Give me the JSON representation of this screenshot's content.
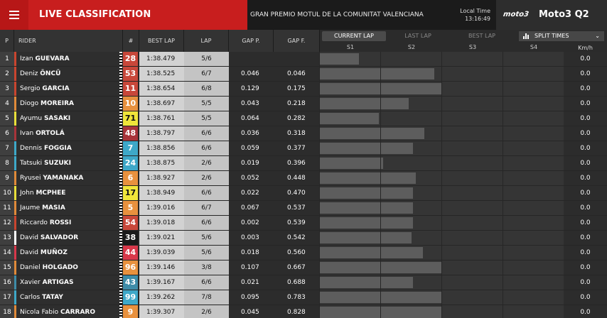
{
  "header": {
    "menu_icon": "hamburger-icon",
    "title": "LIVE CLASSIFICATION",
    "event": "GRAN PREMIO MOTUL DE LA COMUNITAT VALENCIANA",
    "local_time_label": "Local Time",
    "local_time": "13:16:49",
    "series_logo": "moto3",
    "session": "Moto3 Q2"
  },
  "columns": {
    "pos": "P",
    "rider": "RIDER",
    "number": "#",
    "best_lap": "BEST LAP",
    "lap": "LAP",
    "gap_prev": "GAP P.",
    "gap_first": "GAP F.",
    "kmh": "Km/h"
  },
  "lap_tabs": [
    {
      "label": "CURRENT LAP",
      "active": true
    },
    {
      "label": "LAST LAP",
      "active": false
    },
    {
      "label": "BEST LAP",
      "active": false
    }
  ],
  "split_select": {
    "label": "SPLIT TIMES",
    "icon": "bar-chart-icon",
    "chevron": "chevron-down-icon"
  },
  "sectors": [
    "S1",
    "S2",
    "S3",
    "S4"
  ],
  "riders": [
    {
      "pos": "1",
      "first": "Izan",
      "last": "GUEVARA",
      "num": "28",
      "num_bg": "#c8473a",
      "num_fg": "#ffffff",
      "team_color": "#c9452f",
      "best": "1:38.479",
      "lap": "5/6",
      "gap_p": "",
      "gap_f": "",
      "sectors": [
        0.65,
        0,
        0,
        0
      ],
      "kmh": "0.0"
    },
    {
      "pos": "2",
      "first": "Deniz",
      "last": "ÖNCÜ",
      "num": "53",
      "num_bg": "#c8473a",
      "num_fg": "#ffffff",
      "team_color": "#c9452f",
      "best": "1:38.525",
      "lap": "6/7",
      "gap_p": "0.046",
      "gap_f": "0.046",
      "sectors": [
        1,
        0.88,
        0,
        0
      ],
      "kmh": "0.0"
    },
    {
      "pos": "3",
      "first": "Sergio",
      "last": "GARCIA",
      "num": "11",
      "num_bg": "#c8473a",
      "num_fg": "#ffffff",
      "team_color": "#c9452f",
      "best": "1:38.654",
      "lap": "6/8",
      "gap_p": "0.129",
      "gap_f": "0.175",
      "sectors": [
        1,
        1,
        0,
        0
      ],
      "kmh": "0.0"
    },
    {
      "pos": "4",
      "first": "Diogo",
      "last": "MOREIRA",
      "num": "10",
      "num_bg": "#e8913e",
      "num_fg": "#ffffff",
      "team_color": "#e08a3a",
      "best": "1:38.697",
      "lap": "5/5",
      "gap_p": "0.043",
      "gap_f": "0.218",
      "sectors": [
        1,
        0.46,
        0,
        0
      ],
      "kmh": "0.0"
    },
    {
      "pos": "5",
      "first": "Ayumu",
      "last": "SASAKI",
      "num": "71",
      "num_bg": "#f0e53a",
      "num_fg": "#111111",
      "team_color": "#e8df3a",
      "best": "1:38.761",
      "lap": "5/5",
      "gap_p": "0.064",
      "gap_f": "0.282",
      "sectors": [
        0.98,
        0,
        0,
        0
      ],
      "kmh": "0.0"
    },
    {
      "pos": "6",
      "first": "Ivan",
      "last": "ORTOLÁ",
      "num": "48",
      "num_bg": "#a8343a",
      "num_fg": "#ffffff",
      "team_color": "#a8343a",
      "best": "1:38.797",
      "lap": "6/6",
      "gap_p": "0.036",
      "gap_f": "0.318",
      "sectors": [
        1,
        0.72,
        0,
        0
      ],
      "kmh": "0.0"
    },
    {
      "pos": "7",
      "first": "Dennis",
      "last": "FOGGIA",
      "num": "7",
      "num_bg": "#3ea8c8",
      "num_fg": "#ffffff",
      "team_color": "#3ea8c8",
      "best": "1:38.856",
      "lap": "6/6",
      "gap_p": "0.059",
      "gap_f": "0.377",
      "sectors": [
        1,
        0.53,
        0,
        0
      ],
      "kmh": "0.0"
    },
    {
      "pos": "8",
      "first": "Tatsuki",
      "last": "SUZUKI",
      "num": "24",
      "num_bg": "#3ea8c8",
      "num_fg": "#ffffff",
      "team_color": "#3ea8c8",
      "best": "1:38.875",
      "lap": "2/6",
      "gap_p": "0.019",
      "gap_f": "0.396",
      "sectors": [
        1,
        0.03,
        0,
        0
      ],
      "kmh": "0.0"
    },
    {
      "pos": "9",
      "first": "Ryusei",
      "last": "YAMANAKA",
      "num": "6",
      "num_bg": "#e8913e",
      "num_fg": "#ffffff",
      "team_color": "#e08a3a",
      "best": "1:38.927",
      "lap": "2/6",
      "gap_p": "0.052",
      "gap_f": "0.448",
      "sectors": [
        1,
        0.58,
        0,
        0
      ],
      "kmh": "0.0"
    },
    {
      "pos": "10",
      "first": "John",
      "last": "MCPHEE",
      "num": "17",
      "num_bg": "#f0e53a",
      "num_fg": "#111111",
      "team_color": "#e8df3a",
      "best": "1:38.949",
      "lap": "6/6",
      "gap_p": "0.022",
      "gap_f": "0.470",
      "sectors": [
        1,
        0.53,
        0,
        0
      ],
      "kmh": "0.0"
    },
    {
      "pos": "11",
      "first": "Jaume",
      "last": "MASIA",
      "num": "5",
      "num_bg": "#e8913e",
      "num_fg": "#ffffff",
      "team_color": "#e08a3a",
      "best": "1:39.016",
      "lap": "6/7",
      "gap_p": "0.067",
      "gap_f": "0.537",
      "sectors": [
        1,
        0.53,
        0,
        0
      ],
      "kmh": "0.0"
    },
    {
      "pos": "12",
      "first": "Riccardo",
      "last": "ROSSI",
      "num": "54",
      "num_bg": "#c8473a",
      "num_fg": "#ffffff",
      "team_color": "#c9452f",
      "best": "1:39.018",
      "lap": "6/6",
      "gap_p": "0.002",
      "gap_f": "0.539",
      "sectors": [
        1,
        0.53,
        0,
        0
      ],
      "kmh": "0.0"
    },
    {
      "pos": "13",
      "first": "David",
      "last": "SALVADOR",
      "num": "38",
      "num_bg": "#1a1a1a",
      "num_fg": "#ffffff",
      "team_color": "#ffffff",
      "best": "1:39.021",
      "lap": "5/6",
      "gap_p": "0.003",
      "gap_f": "0.542",
      "sectors": [
        1,
        0.5,
        0,
        0
      ],
      "kmh": "0.0"
    },
    {
      "pos": "14",
      "first": "David",
      "last": "MUÑOZ",
      "num": "44",
      "num_bg": "#d8384a",
      "num_fg": "#ffffff",
      "team_color": "#d8384a",
      "best": "1:39.039",
      "lap": "5/6",
      "gap_p": "0.018",
      "gap_f": "0.560",
      "sectors": [
        1,
        0.7,
        0,
        0
      ],
      "kmh": "0.0"
    },
    {
      "pos": "15",
      "first": "Daniel",
      "last": "HOLGADO",
      "num": "96",
      "num_bg": "#e8913e",
      "num_fg": "#ffffff",
      "team_color": "#e08a3a",
      "best": "1:39.146",
      "lap": "3/8",
      "gap_p": "0.107",
      "gap_f": "0.667",
      "sectors": [
        1,
        1,
        0,
        0
      ],
      "kmh": "0.0"
    },
    {
      "pos": "16",
      "first": "Xavier",
      "last": "ARTIGAS",
      "num": "43",
      "num_bg": "#3e8ca8",
      "num_fg": "#ffffff",
      "team_color": "#3e8ca8",
      "best": "1:39.167",
      "lap": "6/6",
      "gap_p": "0.021",
      "gap_f": "0.688",
      "sectors": [
        1,
        0.53,
        0,
        0
      ],
      "kmh": "0.0"
    },
    {
      "pos": "17",
      "first": "Carlos",
      "last": "TATAY",
      "num": "99",
      "num_bg": "#3ea8c8",
      "num_fg": "#ffffff",
      "team_color": "#3ea8c8",
      "best": "1:39.262",
      "lap": "7/8",
      "gap_p": "0.095",
      "gap_f": "0.783",
      "sectors": [
        1,
        1,
        0,
        0
      ],
      "kmh": "0.0"
    },
    {
      "pos": "18",
      "first": "Nicola Fabio",
      "last": "CARRARO",
      "num": "9",
      "num_bg": "#e8913e",
      "num_fg": "#ffffff",
      "team_color": "#e08a3a",
      "best": "1:39.307",
      "lap": "2/6",
      "gap_p": "0.045",
      "gap_f": "0.828",
      "sectors": [
        1,
        1,
        0,
        0
      ],
      "kmh": "0.0"
    }
  ]
}
